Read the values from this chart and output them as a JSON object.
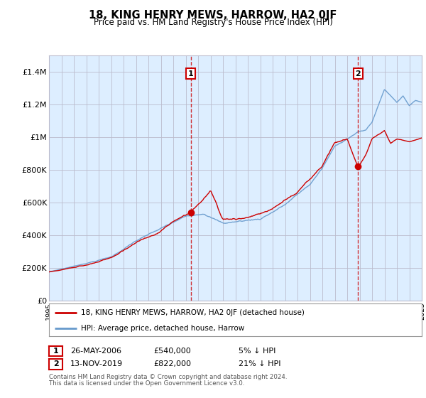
{
  "title": "18, KING HENRY MEWS, HARROW, HA2 0JF",
  "subtitle": "Price paid vs. HM Land Registry's House Price Index (HPI)",
  "legend_label_red": "18, KING HENRY MEWS, HARROW, HA2 0JF (detached house)",
  "legend_label_blue": "HPI: Average price, detached house, Harrow",
  "annotation1_label": "1",
  "annotation1_date": "26-MAY-2006",
  "annotation1_price": "£540,000",
  "annotation1_hpi": "5% ↓ HPI",
  "annotation2_label": "2",
  "annotation2_date": "13-NOV-2019",
  "annotation2_price": "£822,000",
  "annotation2_hpi": "21% ↓ HPI",
  "footer1": "Contains HM Land Registry data © Crown copyright and database right 2024.",
  "footer2": "This data is licensed under the Open Government Licence v3.0.",
  "yticks": [
    0,
    200000,
    400000,
    600000,
    800000,
    1000000,
    1200000,
    1400000
  ],
  "ytick_labels": [
    "£0",
    "£200K",
    "£400K",
    "£600K",
    "£800K",
    "£1M",
    "£1.2M",
    "£1.4M"
  ],
  "ylim": [
    0,
    1500000
  ],
  "x_start_year": 1995,
  "x_end_year": 2025,
  "vline1_year": 2006.4,
  "vline2_year": 2019.87,
  "sale1_year": 2006.4,
  "sale1_price": 540000,
  "sale2_year": 2019.87,
  "sale2_price": 822000,
  "background_color": "#ffffff",
  "chart_bg_color": "#ddeeff",
  "grid_color": "#bbbbcc",
  "red_color": "#cc0000",
  "blue_color": "#6699cc",
  "vline_color": "#cc0000",
  "ann_box_color": "#cc0000"
}
